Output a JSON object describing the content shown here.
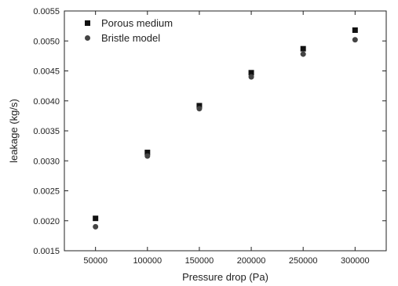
{
  "chart_data": {
    "type": "scatter",
    "title": "",
    "xlabel": "Pressure drop (Pa)",
    "ylabel": "leakage (kg/s)",
    "xlim": [
      20000,
      330000
    ],
    "ylim": [
      0.0015,
      0.0055
    ],
    "x_ticks": [
      "50000",
      "100000",
      "150000",
      "200000",
      "250000",
      "300000"
    ],
    "y_ticks": [
      "0.0015",
      "0.0020",
      "0.0025",
      "0.0030",
      "0.0035",
      "0.0040",
      "0.0045",
      "0.0050",
      "0.0055"
    ],
    "grid": false,
    "legend_position": "top-left",
    "series": [
      {
        "name": "Porous medium",
        "marker": "square",
        "color": "#111111",
        "x": [
          50000,
          100000,
          150000,
          200000,
          250000,
          300000
        ],
        "y": [
          0.00204,
          0.00314,
          0.00392,
          0.00447,
          0.00487,
          0.00518
        ]
      },
      {
        "name": "Bristle model",
        "marker": "circle",
        "color": "#444444",
        "x": [
          50000,
          100000,
          150000,
          200000,
          250000,
          300000
        ],
        "y": [
          0.0019,
          0.00308,
          0.00387,
          0.0044,
          0.00478,
          0.00502
        ]
      }
    ]
  }
}
